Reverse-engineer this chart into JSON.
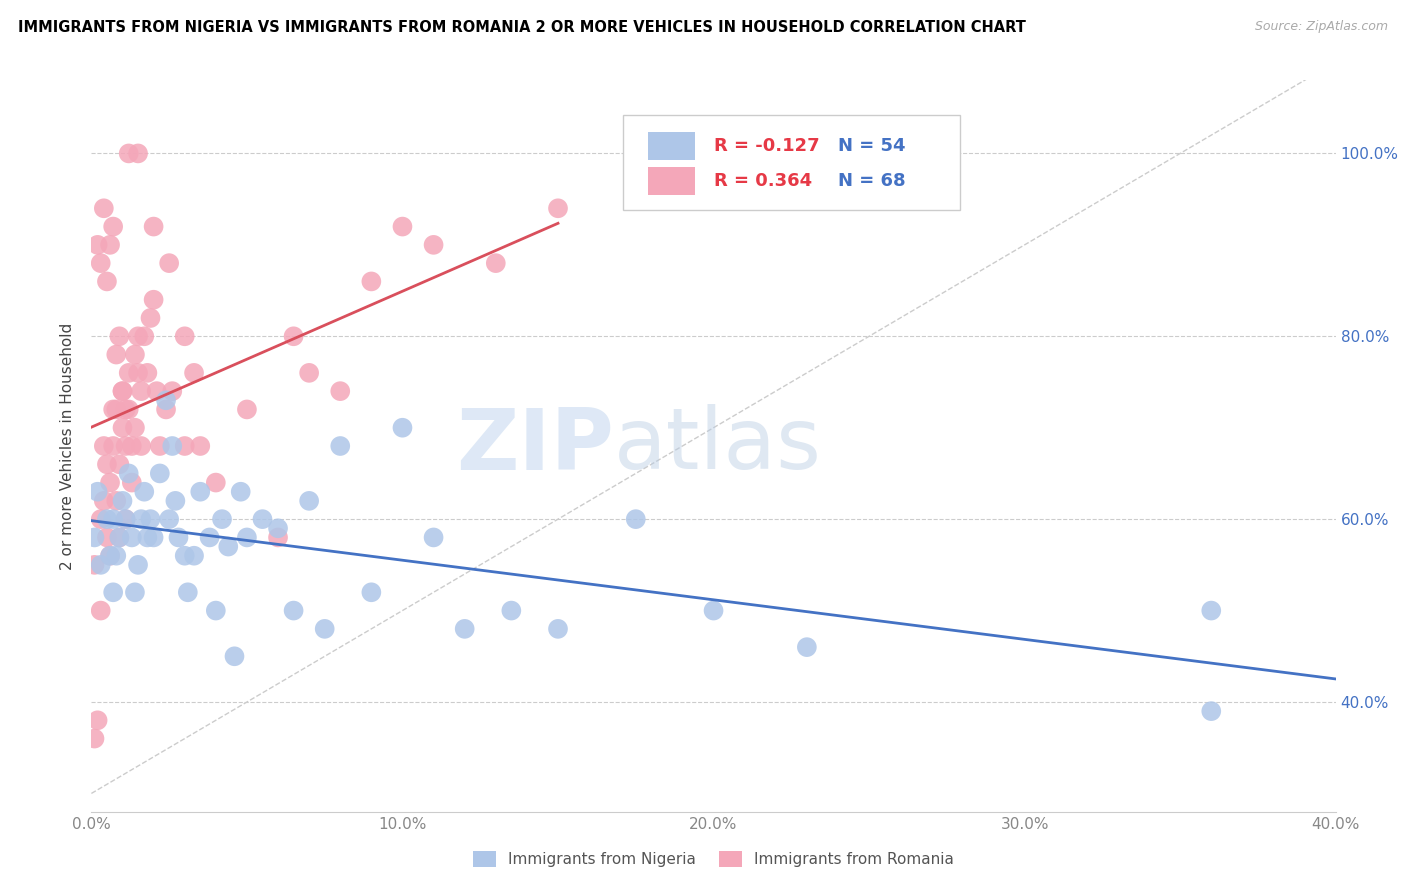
{
  "title": "IMMIGRANTS FROM NIGERIA VS IMMIGRANTS FROM ROMANIA 2 OR MORE VEHICLES IN HOUSEHOLD CORRELATION CHART",
  "source": "Source: ZipAtlas.com",
  "ylabel": "2 or more Vehicles in Household",
  "xlim": [
    0.0,
    0.4
  ],
  "ylim": [
    0.28,
    1.08
  ],
  "xtick_labels": [
    "0.0%",
    "10.0%",
    "20.0%",
    "30.0%",
    "40.0%"
  ],
  "xtick_values": [
    0.0,
    0.1,
    0.2,
    0.3,
    0.4
  ],
  "ytick_labels": [
    "40.0%",
    "60.0%",
    "80.0%",
    "100.0%"
  ],
  "ytick_values": [
    0.4,
    0.6,
    0.8,
    1.0
  ],
  "nigeria_color": "#aec6e8",
  "romania_color": "#f4a7b9",
  "nigeria_line_color": "#4472c4",
  "romania_line_color": "#d94f5c",
  "nigeria_R": -0.127,
  "nigeria_N": 54,
  "romania_R": 0.364,
  "romania_N": 68,
  "watermark_text": "ZIP",
  "watermark_text2": "atlas",
  "nigeria_x": [
    0.001,
    0.002,
    0.003,
    0.005,
    0.006,
    0.007,
    0.007,
    0.008,
    0.009,
    0.01,
    0.011,
    0.012,
    0.013,
    0.014,
    0.015,
    0.016,
    0.017,
    0.018,
    0.019,
    0.02,
    0.022,
    0.024,
    0.025,
    0.026,
    0.027,
    0.028,
    0.03,
    0.031,
    0.033,
    0.035,
    0.038,
    0.04,
    0.042,
    0.044,
    0.046,
    0.048,
    0.05,
    0.055,
    0.06,
    0.065,
    0.07,
    0.075,
    0.08,
    0.09,
    0.1,
    0.11,
    0.12,
    0.135,
    0.15,
    0.175,
    0.2,
    0.23,
    0.36,
    0.36
  ],
  "nigeria_y": [
    0.58,
    0.63,
    0.55,
    0.6,
    0.56,
    0.52,
    0.6,
    0.56,
    0.58,
    0.62,
    0.6,
    0.65,
    0.58,
    0.52,
    0.55,
    0.6,
    0.63,
    0.58,
    0.6,
    0.58,
    0.65,
    0.73,
    0.6,
    0.68,
    0.62,
    0.58,
    0.56,
    0.52,
    0.56,
    0.63,
    0.58,
    0.5,
    0.6,
    0.57,
    0.45,
    0.63,
    0.58,
    0.6,
    0.59,
    0.5,
    0.62,
    0.48,
    0.68,
    0.52,
    0.7,
    0.58,
    0.48,
    0.5,
    0.48,
    0.6,
    0.5,
    0.46,
    0.5,
    0.39
  ],
  "romania_x": [
    0.001,
    0.001,
    0.002,
    0.003,
    0.003,
    0.004,
    0.004,
    0.005,
    0.005,
    0.006,
    0.006,
    0.007,
    0.007,
    0.008,
    0.008,
    0.009,
    0.009,
    0.01,
    0.01,
    0.011,
    0.011,
    0.012,
    0.012,
    0.013,
    0.013,
    0.014,
    0.014,
    0.015,
    0.015,
    0.016,
    0.016,
    0.017,
    0.018,
    0.019,
    0.02,
    0.021,
    0.022,
    0.024,
    0.026,
    0.03,
    0.03,
    0.033,
    0.035,
    0.04,
    0.05,
    0.06,
    0.065,
    0.07,
    0.08,
    0.09,
    0.1,
    0.11,
    0.13,
    0.15,
    0.02,
    0.025,
    0.015,
    0.012,
    0.007,
    0.006,
    0.005,
    0.004,
    0.003,
    0.002,
    0.008,
    0.009,
    0.01,
    0.011
  ],
  "romania_y": [
    0.36,
    0.55,
    0.38,
    0.6,
    0.5,
    0.62,
    0.68,
    0.66,
    0.58,
    0.56,
    0.64,
    0.68,
    0.72,
    0.62,
    0.72,
    0.66,
    0.58,
    0.7,
    0.74,
    0.6,
    0.68,
    0.72,
    0.76,
    0.68,
    0.64,
    0.78,
    0.7,
    0.76,
    0.8,
    0.74,
    0.68,
    0.8,
    0.76,
    0.82,
    0.84,
    0.74,
    0.68,
    0.72,
    0.74,
    0.8,
    0.68,
    0.76,
    0.68,
    0.64,
    0.72,
    0.58,
    0.8,
    0.76,
    0.74,
    0.86,
    0.92,
    0.9,
    0.88,
    0.94,
    0.92,
    0.88,
    1.0,
    1.0,
    0.92,
    0.9,
    0.86,
    0.94,
    0.88,
    0.9,
    0.78,
    0.8,
    0.74,
    0.72
  ]
}
